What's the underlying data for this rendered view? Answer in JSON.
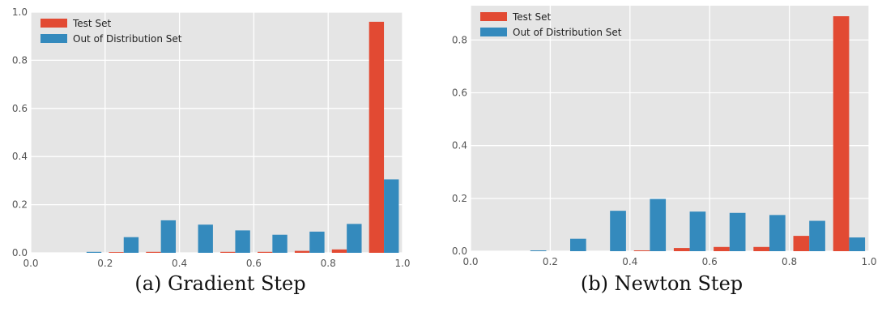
{
  "colors": {
    "test": "#e24a33",
    "ood": "#348abd",
    "plot_bg": "#e5e5e5",
    "grid": "#ffffff"
  },
  "chart_data": [
    {
      "type": "bar",
      "caption": "(a) Gradient Step",
      "xlim": [
        0.0,
        1.0
      ],
      "ylim": [
        0.0,
        1.0
      ],
      "xticks": [
        "0.0",
        "0.2",
        "0.4",
        "0.6",
        "0.8",
        "1.0"
      ],
      "yticks": [
        "0.0",
        "0.2",
        "0.4",
        "0.6",
        "0.8",
        "1.0"
      ],
      "grid": true,
      "legend": "top-left",
      "bin_edges": [
        0.0,
        0.1,
        0.2,
        0.3,
        0.4,
        0.5,
        0.6,
        0.7,
        0.8,
        0.9,
        1.0
      ],
      "series": [
        {
          "name": "Test Set",
          "values": [
            0.0,
            0.0,
            0.003,
            0.004,
            0.0,
            0.004,
            0.004,
            0.008,
            0.014,
            0.96
          ]
        },
        {
          "name": "Out of Distribution Set",
          "values": [
            0.0,
            0.004,
            0.065,
            0.135,
            0.117,
            0.093,
            0.075,
            0.088,
            0.12,
            0.305
          ]
        }
      ]
    },
    {
      "type": "bar",
      "caption": "(b) Newton Step",
      "xlim": [
        0.0,
        1.0
      ],
      "ylim": [
        0.0,
        0.93
      ],
      "xticks": [
        "0.0",
        "0.2",
        "0.4",
        "0.6",
        "0.8",
        "1.0"
      ],
      "yticks": [
        "0.0",
        "0.2",
        "0.4",
        "0.6",
        "0.8"
      ],
      "grid": true,
      "legend": "top-left",
      "bin_edges": [
        0.0,
        0.1,
        0.2,
        0.3,
        0.4,
        0.5,
        0.6,
        0.7,
        0.8,
        0.9,
        1.0
      ],
      "series": [
        {
          "name": "Test Set",
          "values": [
            0.0,
            0.0,
            0.0,
            0.0,
            0.003,
            0.012,
            0.016,
            0.016,
            0.058,
            0.89
          ]
        },
        {
          "name": "Out of Distribution Set",
          "values": [
            0.0,
            0.003,
            0.047,
            0.153,
            0.198,
            0.15,
            0.145,
            0.137,
            0.115,
            0.052
          ]
        }
      ]
    }
  ]
}
